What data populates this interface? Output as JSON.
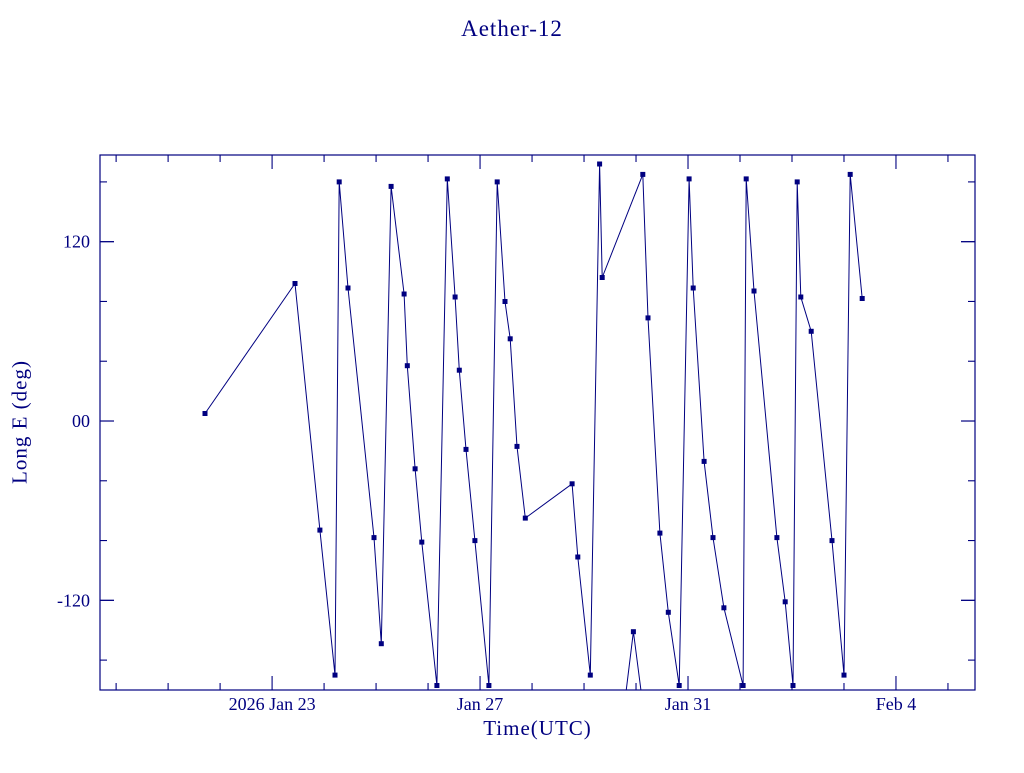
{
  "title": "Aether-12",
  "colors": {
    "accent": "#000080",
    "background": "#ffffff"
  },
  "chart_data": {
    "type": "line",
    "title": "Aether-12",
    "xlabel": "Time(UTC)",
    "ylabel": "Long E (deg)",
    "x_unit": "days since 2026 Jan 19 00:00 UTC",
    "xlim": [
      0.69,
      17.52
    ],
    "ylim": [
      -180,
      178
    ],
    "grid": false,
    "legend": "none",
    "marker": "filled-square",
    "line_color": "#000080",
    "x_major_ticks": [
      {
        "value": 4,
        "label": "2026 Jan 23"
      },
      {
        "value": 8,
        "label": "Jan 27"
      },
      {
        "value": 12,
        "label": "Jan 31"
      },
      {
        "value": 16,
        "label": "Feb 4"
      }
    ],
    "x_minor_step": 1,
    "y_major_ticks": [
      {
        "value": 120,
        "label": "120"
      },
      {
        "value": 0,
        "label": "00"
      },
      {
        "value": -120,
        "label": "-120"
      }
    ],
    "y_minor_step": 40,
    "segments": [
      [
        [
          2.71,
          5
        ],
        [
          4.44,
          92
        ],
        [
          4.92,
          -73
        ],
        [
          5.21,
          -170
        ],
        [
          5.29,
          160
        ],
        [
          5.46,
          89
        ],
        [
          5.96,
          -78
        ],
        [
          6.1,
          -149
        ],
        [
          6.29,
          157
        ],
        [
          6.54,
          85
        ],
        [
          6.6,
          37
        ],
        [
          6.75,
          -32
        ],
        [
          6.88,
          -81
        ],
        [
          7.17,
          -177
        ],
        [
          7.37,
          162
        ],
        [
          7.52,
          83
        ],
        [
          7.6,
          34
        ],
        [
          7.73,
          -19
        ],
        [
          7.9,
          -80
        ],
        [
          8.17,
          -177
        ],
        [
          8.33,
          160
        ],
        [
          8.48,
          80
        ],
        [
          8.58,
          55
        ],
        [
          8.71,
          -17
        ],
        [
          8.87,
          -65
        ],
        [
          9.77,
          -42
        ],
        [
          9.88,
          -91
        ],
        [
          10.12,
          -170
        ],
        [
          10.3,
          172
        ],
        [
          10.35,
          96
        ],
        [
          11.13,
          165
        ],
        [
          11.23,
          69
        ],
        [
          11.46,
          -75
        ],
        [
          11.62,
          -128
        ],
        [
          11.83,
          -177
        ],
        [
          12.02,
          162
        ],
        [
          12.1,
          89
        ],
        [
          12.31,
          -27
        ],
        [
          12.48,
          -78
        ],
        [
          12.69,
          -125
        ],
        [
          13.06,
          -177
        ],
        [
          13.12,
          162
        ],
        [
          13.27,
          87
        ],
        [
          13.71,
          -78
        ],
        [
          13.87,
          -121
        ],
        [
          14.02,
          -177
        ],
        [
          14.1,
          160
        ],
        [
          14.17,
          83
        ],
        [
          14.37,
          60
        ],
        [
          14.77,
          -80
        ],
        [
          15.0,
          -170
        ],
        [
          15.12,
          165
        ],
        [
          15.35,
          82
        ]
      ],
      [
        [
          10.76,
          -195
        ],
        [
          10.95,
          -141
        ],
        [
          11.15,
          -195
        ]
      ]
    ]
  }
}
